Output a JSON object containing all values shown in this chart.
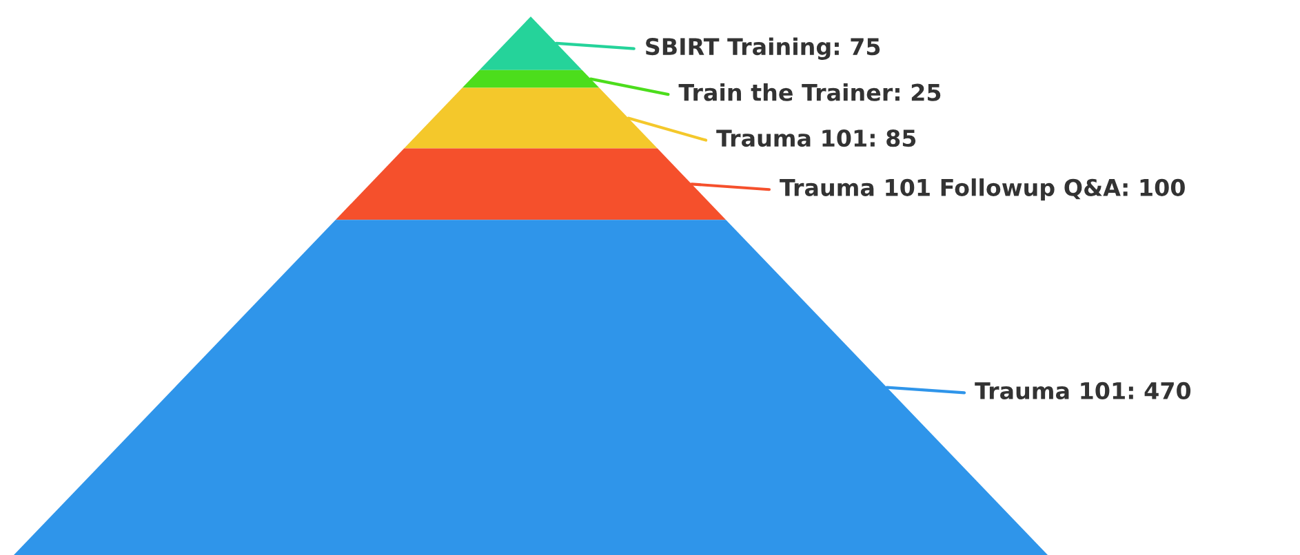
{
  "chart_data": {
    "type": "other",
    "categories": [
      "SBIRT Training",
      "Train the Trainer",
      "Trauma 101",
      "Trauma 101 Followup Q&A",
      "Trauma 101"
    ],
    "values": [
      75,
      25,
      85,
      100,
      470
    ],
    "colors": [
      "#25d39a",
      "#4cdd1c",
      "#f4c82b",
      "#f5502c",
      "#2f95ea"
    ],
    "value_labels": [
      ": 75",
      ": 25",
      ": 85",
      ": 100",
      ": 470"
    ]
  }
}
